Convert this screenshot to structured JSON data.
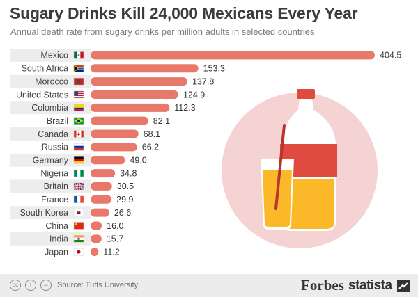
{
  "chart_data": {
    "type": "bar",
    "orientation": "horizontal",
    "title": "Sugary Drinks Kill 24,000 Mexicans Every Year",
    "subtitle": "Annual death rate from sugary drinks per million adults in selected countries",
    "xlabel": "",
    "ylabel": "",
    "xlim": [
      0,
      404.5
    ],
    "grid": false,
    "categories": [
      "Mexico",
      "South Africa",
      "Morocco",
      "United States",
      "Colombia",
      "Brazil",
      "Canada",
      "Russia",
      "Germany",
      "Nigeria",
      "Britain",
      "France",
      "South Korea",
      "China",
      "India",
      "Japan"
    ],
    "values": [
      404.5,
      153.3,
      137.8,
      124.9,
      112.3,
      82.1,
      68.1,
      66.2,
      49.0,
      34.8,
      30.5,
      29.9,
      26.6,
      16.0,
      15.7,
      11.2
    ],
    "value_labels": [
      "404.5",
      "153.3",
      "137.8",
      "124.9",
      "112.3",
      "82.1",
      "68.1",
      "66.2",
      "49.0",
      "34.8",
      "30.5",
      "29.9",
      "26.6",
      "16.0",
      "15.7",
      "11.2"
    ],
    "flags": [
      "mexico-flag-icon",
      "south-africa-flag-icon",
      "morocco-flag-icon",
      "united-states-flag-icon",
      "colombia-flag-icon",
      "brazil-flag-icon",
      "canada-flag-icon",
      "russia-flag-icon",
      "germany-flag-icon",
      "nigeria-flag-icon",
      "britain-flag-icon",
      "france-flag-icon",
      "south-korea-flag-icon",
      "china-flag-icon",
      "india-flag-icon",
      "japan-flag-icon"
    ],
    "bar_color": "#e8786a",
    "row_band_color": "#ededed"
  },
  "illustration": {
    "name": "soda-bottle-and-glass-illustration",
    "circle_color": "#f5d3d3",
    "bottle_color": "#ffffff",
    "label_color": "#e04a3f",
    "juice_color": "#fbb829",
    "straw_color": "#b8342c"
  },
  "footer": {
    "source": "Source: Tufts University",
    "forbes": "Forbes",
    "statista": "statista",
    "background_color": "#ececec"
  }
}
